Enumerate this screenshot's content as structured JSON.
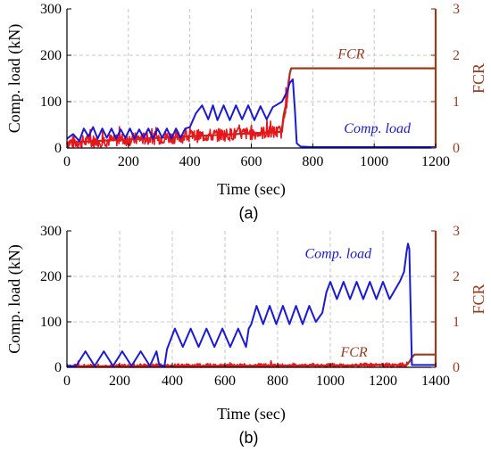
{
  "chart_data": [
    {
      "panel_label": "(a)",
      "type": "line",
      "xlabel": "Time (sec)",
      "ylabel": "Comp. load (kN)",
      "y2label": "FCR",
      "xlim": [
        0,
        1200
      ],
      "xticks": [
        0,
        200,
        400,
        600,
        800,
        1000,
        1200
      ],
      "ylim": [
        0,
        300
      ],
      "yticks": [
        0,
        100,
        200,
        300
      ],
      "y2lim": [
        0,
        3
      ],
      "y2ticks": [
        0,
        1,
        2,
        3
      ],
      "grid": true,
      "colors": {
        "load": "#1a1ad6",
        "fcr_base": "#9c3a1c",
        "fcr_noise": "#e8161a",
        "right_axis": "#9c3a1c"
      },
      "series": [
        {
          "name": "Comp. load",
          "axis": "left",
          "x": [
            0,
            20,
            40,
            55,
            70,
            85,
            100,
            115,
            130,
            145,
            160,
            175,
            190,
            205,
            220,
            235,
            250,
            265,
            280,
            295,
            310,
            325,
            340,
            355,
            370,
            385,
            400,
            410,
            420,
            440,
            460,
            475,
            490,
            510,
            530,
            550,
            570,
            590,
            610,
            630,
            650,
            670,
            700,
            715,
            725,
            735,
            742,
            748,
            760,
            800,
            900,
            1000,
            1100,
            1200
          ],
          "y": [
            20,
            30,
            15,
            42,
            25,
            45,
            20,
            42,
            22,
            42,
            20,
            40,
            22,
            42,
            20,
            40,
            22,
            42,
            20,
            42,
            22,
            42,
            20,
            42,
            22,
            42,
            45,
            60,
            75,
            92,
            62,
            92,
            60,
            92,
            60,
            92,
            62,
            92,
            60,
            90,
            62,
            88,
            100,
            120,
            140,
            148,
            80,
            10,
            3,
            2,
            2,
            2,
            2,
            2
          ]
        },
        {
          "name": "FCR",
          "axis": "right",
          "x": [
            0,
            700,
            705,
            715,
            722,
            725,
            730,
            1200
          ],
          "y": [
            0.12,
            0.35,
            0.7,
            1.0,
            1.4,
            1.6,
            1.72,
            1.72
          ]
        }
      ],
      "annotations": [
        {
          "text": "FCR",
          "x": 925,
          "y": 1.93,
          "axis": "right",
          "color": "#9c3a1c"
        },
        {
          "text": "Comp. load",
          "x": 1010,
          "y": 33,
          "axis": "left",
          "color": "#1a1ad6"
        }
      ]
    },
    {
      "panel_label": "(b)",
      "type": "line",
      "xlabel": "Time (sec)",
      "ylabel": "Comp. load (kN)",
      "y2label": "FCR",
      "xlim": [
        0,
        1400
      ],
      "xticks": [
        0,
        200,
        400,
        600,
        800,
        1000,
        1200,
        1400
      ],
      "ylim": [
        0,
        300
      ],
      "yticks": [
        0,
        100,
        200,
        300
      ],
      "y2lim": [
        0,
        3
      ],
      "y2ticks": [
        0,
        1,
        2,
        3
      ],
      "grid": true,
      "colors": {
        "load": "#1a1ad6",
        "fcr_base": "#9c3a1c",
        "fcr_noise": "#e8161a",
        "right_axis": "#9c3a1c"
      },
      "series": [
        {
          "name": "Comp. load",
          "axis": "left",
          "x": [
            0,
            35,
            70,
            105,
            140,
            175,
            210,
            245,
            280,
            315,
            340,
            350,
            370,
            380,
            410,
            440,
            470,
            500,
            530,
            560,
            590,
            620,
            650,
            680,
            690,
            700,
            720,
            745,
            770,
            795,
            820,
            845,
            870,
            895,
            920,
            945,
            970,
            985,
            1000,
            1025,
            1050,
            1075,
            1100,
            1125,
            1150,
            1175,
            1200,
            1225,
            1250,
            1265,
            1280,
            1290,
            1295,
            1300,
            1310,
            1400
          ],
          "y": [
            3,
            3,
            35,
            3,
            35,
            3,
            35,
            3,
            35,
            3,
            35,
            5,
            3,
            40,
            85,
            45,
            85,
            45,
            85,
            45,
            85,
            45,
            85,
            45,
            85,
            95,
            135,
            95,
            135,
            95,
            135,
            95,
            135,
            95,
            135,
            100,
            120,
            165,
            188,
            150,
            188,
            150,
            188,
            150,
            188,
            150,
            188,
            150,
            175,
            190,
            210,
            255,
            272,
            260,
            5,
            5
          ]
        },
        {
          "name": "FCR",
          "axis": "right",
          "x": [
            0,
            1000,
            1290,
            1300,
            1310,
            1320,
            1400
          ],
          "y": [
            0.02,
            0.04,
            0.05,
            0.12,
            0.22,
            0.28,
            0.28
          ]
        }
      ],
      "annotations": [
        {
          "text": "Comp. load",
          "x": 1030,
          "y": 240,
          "axis": "left",
          "color": "#1a1ad6"
        },
        {
          "text": "FCR",
          "x": 1090,
          "y": 0.24,
          "axis": "right",
          "color": "#9c3a1c"
        }
      ]
    }
  ]
}
